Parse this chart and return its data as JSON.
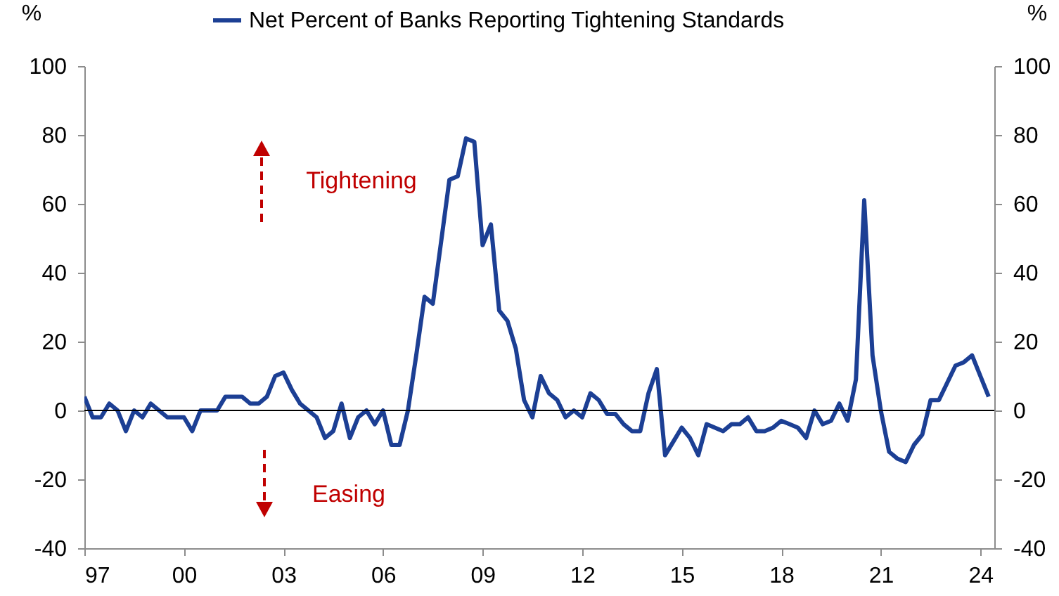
{
  "chart_data": {
    "type": "line",
    "ylabel": "%",
    "y2label": "%",
    "legend": "top",
    "grid": false,
    "x": [
      1997,
      1997.25,
      1997.5,
      1997.75,
      1998,
      1998.25,
      1998.5,
      1998.75,
      1999,
      1999.25,
      1999.5,
      1999.75,
      2000,
      2000.25,
      2000.5,
      2000.75,
      2001,
      2001.25,
      2001.5,
      2001.75,
      2002,
      2002.25,
      2002.5,
      2002.75,
      2003,
      2003.25,
      2003.5,
      2003.75,
      2004,
      2004.25,
      2004.5,
      2004.75,
      2005,
      2005.25,
      2005.5,
      2005.75,
      2006,
      2006.25,
      2006.5,
      2006.75,
      2007,
      2007.25,
      2007.5,
      2007.75,
      2008,
      2008.25,
      2008.5,
      2008.75,
      2009,
      2009.25,
      2009.5,
      2009.75,
      2010,
      2010.25,
      2010.5,
      2010.75,
      2011,
      2011.25,
      2011.5,
      2011.75,
      2012,
      2012.25,
      2012.5,
      2012.75,
      2013,
      2013.25,
      2013.5,
      2013.75,
      2014,
      2014.25,
      2014.5,
      2014.75,
      2015,
      2015.25,
      2015.5,
      2015.75,
      2016,
      2016.25,
      2016.5,
      2016.75,
      2017,
      2017.25,
      2017.5,
      2017.75,
      2018,
      2018.25,
      2018.5,
      2018.75,
      2019,
      2019.25,
      2019.5,
      2019.75,
      2020,
      2020.25,
      2020.5,
      2020.75,
      2021,
      2021.25,
      2021.5,
      2021.75,
      2022,
      2022.25,
      2022.5,
      2022.75,
      2023,
      2023.25,
      2023.5,
      2023.75,
      2024,
      2024.25
    ],
    "series": [
      {
        "name": "Net Percent of Banks Reporting Tightening Standards",
        "color": "#1c3f94",
        "values": [
          4,
          -2,
          -2,
          2,
          0,
          -6,
          0,
          -2,
          2,
          0,
          -2,
          -2,
          -2,
          -6,
          0,
          0,
          0,
          4,
          4,
          4,
          2,
          2,
          4,
          10,
          11,
          6,
          2,
          0,
          -2,
          -8,
          -6,
          2,
          -8,
          -2,
          0,
          -4,
          0,
          -10,
          -10,
          0,
          16,
          33,
          31,
          49,
          67,
          68,
          79,
          78,
          48,
          54,
          29,
          26,
          18,
          3,
          -2,
          10,
          5,
          3,
          -2,
          0,
          -2,
          5,
          3,
          -1,
          -1,
          -4,
          -6,
          -6,
          5,
          12,
          -13,
          -9,
          -5,
          -8,
          -13,
          -4,
          -5,
          -6,
          -4,
          -4,
          -2,
          -6,
          -6,
          -5,
          -3,
          -4,
          -5,
          -8,
          0,
          -4,
          -3,
          2,
          -3,
          9,
          61,
          16,
          0,
          -12,
          -14,
          -15,
          -10,
          -7,
          3,
          3,
          8,
          13,
          14,
          16,
          10,
          4
        ]
      }
    ],
    "xlim": [
      1997,
      2024.42
    ],
    "xticks": [
      {
        "value": 1997,
        "label": "97"
      },
      {
        "value": 2000,
        "label": "00"
      },
      {
        "value": 2003,
        "label": "03"
      },
      {
        "value": 2006,
        "label": "06"
      },
      {
        "value": 2009,
        "label": "09"
      },
      {
        "value": 2012,
        "label": "12"
      },
      {
        "value": 2015,
        "label": "15"
      },
      {
        "value": 2018,
        "label": "18"
      },
      {
        "value": 2021,
        "label": "21"
      },
      {
        "value": 2024,
        "label": "24"
      }
    ],
    "ylim": [
      -40,
      100
    ],
    "yticks": [
      -40,
      -20,
      0,
      20,
      40,
      60,
      80,
      100
    ],
    "y2lim": [
      -40,
      100
    ],
    "y2ticks": [
      -40,
      -20,
      0,
      20,
      40,
      60,
      80,
      100
    ],
    "ref_lines": [
      {
        "axis": "y",
        "value": 0,
        "color": "#000000"
      }
    ],
    "annotations": [
      "Tightening",
      "Easing"
    ]
  }
}
